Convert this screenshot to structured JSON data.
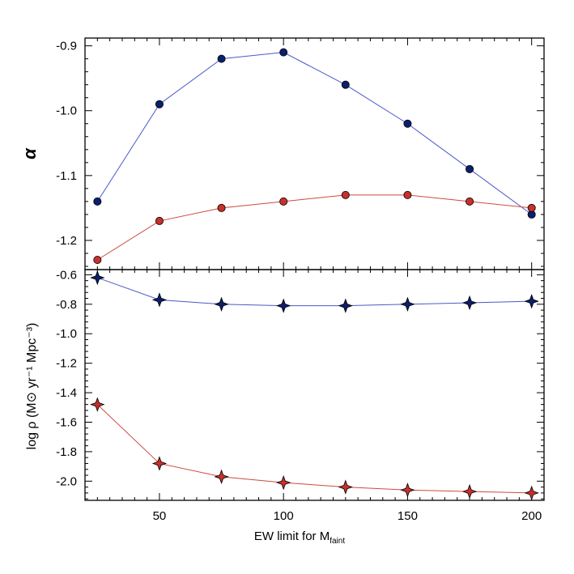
{
  "colors": {
    "blue_fill": "#0a1f6e",
    "blue_line": "#4a5ac8",
    "red_fill": "#c8302a",
    "red_line": "#cc4a40",
    "axis": "#000000"
  },
  "chart_data": [
    {
      "type": "line",
      "panel": "top",
      "ylabel": "α",
      "xlim": [
        20,
        205
      ],
      "ylim": [
        -1.245,
        -0.888
      ],
      "x": [
        25,
        50,
        75,
        100,
        125,
        150,
        175,
        200
      ],
      "xticks": [
        50,
        100,
        150,
        200
      ],
      "xtick_labels": [
        "",
        "",
        "",
        ""
      ],
      "yticks": [
        -1.2,
        -1.1,
        -1.0,
        -0.9
      ],
      "ytick_labels": [
        "-1.2",
        "-1.1",
        "-1.0",
        "-0.9"
      ],
      "marker": "circle",
      "series": [
        {
          "color_key": "blue",
          "values": [
            -1.14,
            -0.99,
            -0.92,
            -0.91,
            -0.96,
            -1.02,
            -1.09,
            -1.16
          ]
        },
        {
          "color_key": "red",
          "values": [
            -1.23,
            -1.17,
            -1.15,
            -1.14,
            -1.13,
            -1.13,
            -1.14,
            -1.15
          ]
        }
      ]
    },
    {
      "type": "line",
      "panel": "bottom",
      "ylabel": "log ρ (M⊙ yr⁻¹ Mpc⁻³)",
      "xlabel": "EW limit for M",
      "xlabel_sub": "faint",
      "xlim": [
        20,
        205
      ],
      "ylim": [
        -2.13,
        -0.565
      ],
      "x": [
        25,
        50,
        75,
        100,
        125,
        150,
        175,
        200
      ],
      "xticks": [
        50,
        100,
        150,
        200
      ],
      "xtick_labels": [
        "50",
        "100",
        "150",
        "200"
      ],
      "yticks": [
        -2.0,
        -1.8,
        -1.6,
        -1.4,
        -1.2,
        -1.0,
        -0.8,
        -0.6
      ],
      "ytick_labels": [
        "-2.0",
        "-1.8",
        "-1.6",
        "-1.4",
        "-1.2",
        "-1.0",
        "-0.8",
        "-0.6"
      ],
      "marker": "star4",
      "series": [
        {
          "color_key": "blue",
          "values": [
            -0.62,
            -0.77,
            -0.8,
            -0.81,
            -0.81,
            -0.8,
            -0.79,
            -0.78
          ]
        },
        {
          "color_key": "red",
          "values": [
            -1.48,
            -1.88,
            -1.97,
            -2.01,
            -2.04,
            -2.06,
            -2.07,
            -2.08
          ]
        }
      ]
    }
  ]
}
